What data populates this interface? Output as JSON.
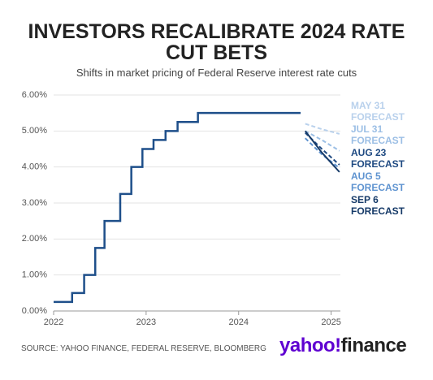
{
  "chart_data": {
    "type": "line",
    "title": "INVESTORS RECALIBRATE 2024 RATE CUT BETS",
    "subtitle": "Shifts in market pricing of Federal Reserve interest rate cuts",
    "source": "SOURCE: YAHOO FINANCE, FEDERAL RESERVE, BLOOMBERG",
    "logo": {
      "brand": "yahoo!",
      "product": "finance"
    },
    "xlim": [
      2022,
      2025.1
    ],
    "xticks": [
      2022,
      2023,
      2024,
      2025
    ],
    "ylim": [
      0,
      6
    ],
    "yticks": [
      {
        "value": 0,
        "label": "0.00%"
      },
      {
        "value": 1,
        "label": "1.00%"
      },
      {
        "value": 2,
        "label": "2.00%"
      },
      {
        "value": 3,
        "label": "3.00%"
      },
      {
        "value": 4,
        "label": "4.00%"
      },
      {
        "value": 5,
        "label": "5.00%"
      },
      {
        "value": 6,
        "label": "6.00%"
      }
    ],
    "grid": true,
    "series": [
      {
        "color": "#1e4f8a",
        "step": true,
        "dash": false,
        "x": [
          2022.0,
          2022.2,
          2022.33,
          2022.45,
          2022.55,
          2022.72,
          2022.84,
          2022.96,
          2023.08,
          2023.21,
          2023.34,
          2023.56,
          2024.67
        ],
        "values": [
          0.25,
          0.5,
          1.0,
          1.75,
          2.5,
          3.25,
          4.0,
          4.5,
          4.75,
          5.0,
          5.25,
          5.5,
          5.5
        ]
      },
      {
        "name": "MAY 31 FORECAST",
        "color": "#b9d1ec",
        "step": false,
        "dash": true,
        "x": [
          2024.72,
          2024.9,
          2025.09
        ],
        "values": [
          5.2,
          5.05,
          4.92
        ]
      },
      {
        "name": "JUL 31 FORECAST",
        "color": "#9cbfe5",
        "step": false,
        "dash": true,
        "x": [
          2024.72,
          2024.9,
          2025.09
        ],
        "values": [
          5.0,
          4.75,
          4.45
        ]
      },
      {
        "name": "AUG 23 FORECAST",
        "color": "#1f4a82",
        "step": false,
        "dash": true,
        "x": [
          2024.72,
          2024.9,
          2025.09
        ],
        "values": [
          4.95,
          4.5,
          4.06
        ]
      },
      {
        "name": "AUG 5 FORECAST",
        "color": "#5e93d0",
        "step": false,
        "dash": true,
        "x": [
          2024.72,
          2024.9,
          2025.09
        ],
        "values": [
          4.8,
          4.35,
          3.97
        ]
      },
      {
        "name": "SEP 6 FORECAST",
        "color": "#163a68",
        "step": false,
        "dash": false,
        "x": [
          2024.72,
          2024.9,
          2025.09
        ],
        "values": [
          5.0,
          4.4,
          3.86
        ]
      }
    ]
  }
}
